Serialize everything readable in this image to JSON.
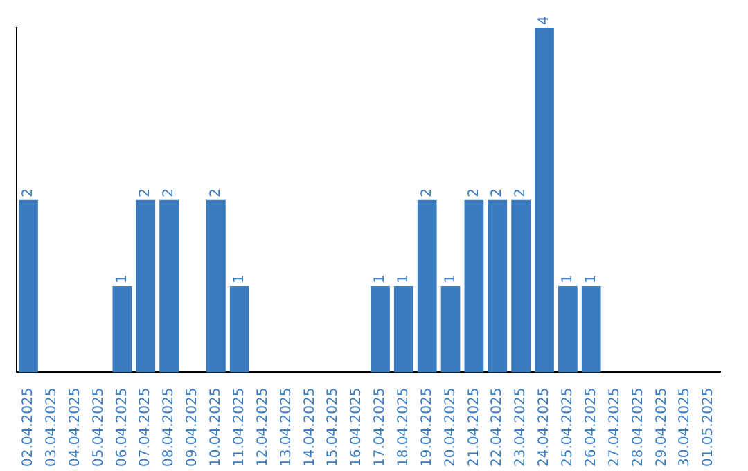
{
  "chart_data": {
    "type": "bar",
    "categories": [
      "02.04.2025",
      "03.04.2025",
      "04.04.2025",
      "05.04.2025",
      "06.04.2025",
      "07.04.2025",
      "08.04.2025",
      "09.04.2025",
      "10.04.2025",
      "11.04.2025",
      "12.04.2025",
      "13.04.2025",
      "14.04.2025",
      "15.04.2025",
      "16.04.2025",
      "17.04.2025",
      "18.04.2025",
      "19.04.2025",
      "20.04.2025",
      "21.04.2025",
      "22.04.2025",
      "23.04.2025",
      "24.04.2025",
      "25.04.2025",
      "26.04.2025",
      "27.04.2025",
      "28.04.2025",
      "29.04.2025",
      "30.04.2025",
      "01.05.2025"
    ],
    "values": [
      2,
      0,
      0,
      0,
      1,
      2,
      2,
      0,
      2,
      1,
      0,
      0,
      0,
      0,
      0,
      1,
      1,
      2,
      1,
      2,
      2,
      2,
      4,
      1,
      1,
      0,
      0,
      0,
      0,
      0
    ],
    "value_labels": [
      "2",
      null,
      null,
      null,
      "1",
      "2",
      "2",
      null,
      "2",
      "1",
      null,
      null,
      null,
      null,
      null,
      "1",
      "1",
      "2",
      "1",
      "2",
      "2",
      "2",
      "4",
      "1",
      "1",
      null,
      null,
      null,
      null,
      null
    ],
    "color": "#3b7cc0",
    "tick_labels": "x",
    "grid": false,
    "legend": false
  }
}
